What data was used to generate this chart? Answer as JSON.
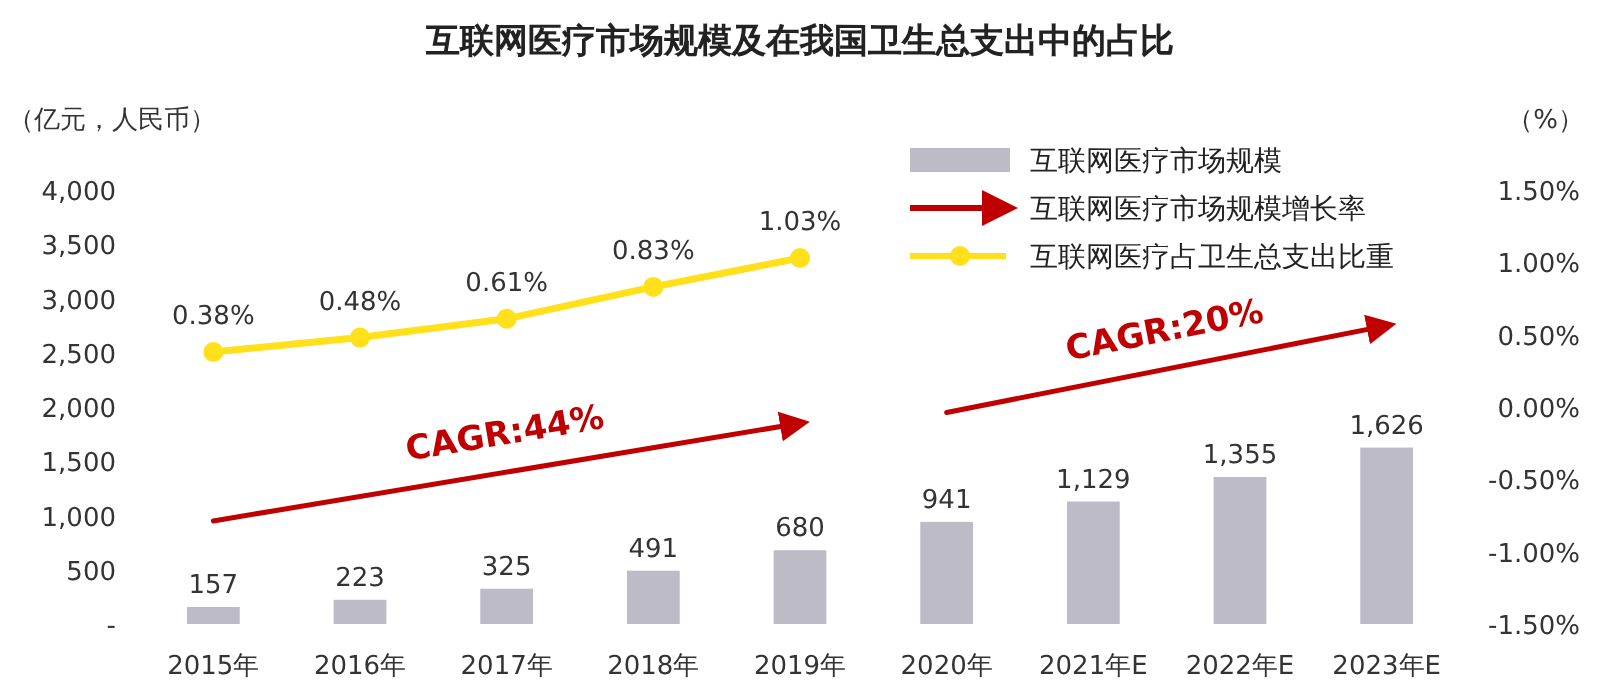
{
  "chart_data": {
    "type": "bar",
    "title": "互联网医疗市场规模及在我国卫生总支出中的占比",
    "ylabel": "（亿元，人民币）",
    "y2label": "（%）",
    "categories": [
      "2015年",
      "2016年",
      "2017年",
      "2018年",
      "2019年",
      "2020年",
      "2021年E",
      "2022年E",
      "2023年E"
    ],
    "series": [
      {
        "name": "互联网医疗市场规模",
        "color": "#bdbcc6",
        "values": [
          157,
          223,
          325,
          491,
          680,
          941,
          1129,
          1355,
          1626
        ],
        "value_labels": [
          "157",
          "223",
          "325",
          "491",
          "680",
          "941",
          "1,129",
          "1,355",
          "1,626"
        ]
      },
      {
        "name": "互联网医疗市场规模增长率",
        "type": "line",
        "color": "#c00000",
        "marker": "none",
        "values": [
          950,
          null,
          null,
          null,
          1850,
          null,
          null,
          null,
          null
        ]
      },
      {
        "type": "line",
        "color": "#c00000",
        "marker": "none",
        "values": [
          null,
          null,
          null,
          null,
          null,
          1950,
          null,
          null,
          2750
        ]
      },
      {
        "name": "互联网医疗占卫生总支出比重",
        "type": "line",
        "axis": "y2",
        "color": "#ffe01a",
        "marker": "circle",
        "values": [
          0.38,
          0.48,
          0.61,
          0.83,
          1.03,
          null,
          null,
          null,
          null
        ],
        "value_labels": [
          "0.38%",
          "0.48%",
          "0.61%",
          "0.83%",
          "1.03%",
          null,
          null,
          null,
          null
        ]
      }
    ],
    "annotations": [
      "CAGR:44%",
      "CAGR:20%"
    ],
    "ylim": [
      0,
      4000
    ],
    "yticks": [
      {
        "value": 0,
        "label": "-"
      },
      500,
      {
        "value": 1000,
        "label": "1,000"
      },
      {
        "value": 1500,
        "label": "1,500"
      },
      {
        "value": 2000,
        "label": "2,000"
      },
      {
        "value": 2500,
        "label": "2,500"
      },
      {
        "value": 3000,
        "label": "3,000"
      },
      {
        "value": 3500,
        "label": "3,500"
      },
      {
        "value": 4000,
        "label": "4,000"
      }
    ],
    "y2lim": [
      -1.5,
      1.5
    ],
    "y2ticks": [
      {
        "value": -1.5,
        "label": "-1.50%"
      },
      {
        "value": -1,
        "label": "-1.00%"
      },
      {
        "value": -0.5,
        "label": "-0.50%"
      },
      {
        "value": 0,
        "label": "0.00%"
      },
      {
        "value": 0.5,
        "label": "0.50%"
      },
      {
        "value": 1,
        "label": "1.00%"
      },
      {
        "value": 1.5,
        "label": "1.50%"
      }
    ],
    "grid": false,
    "legend": "top right"
  }
}
